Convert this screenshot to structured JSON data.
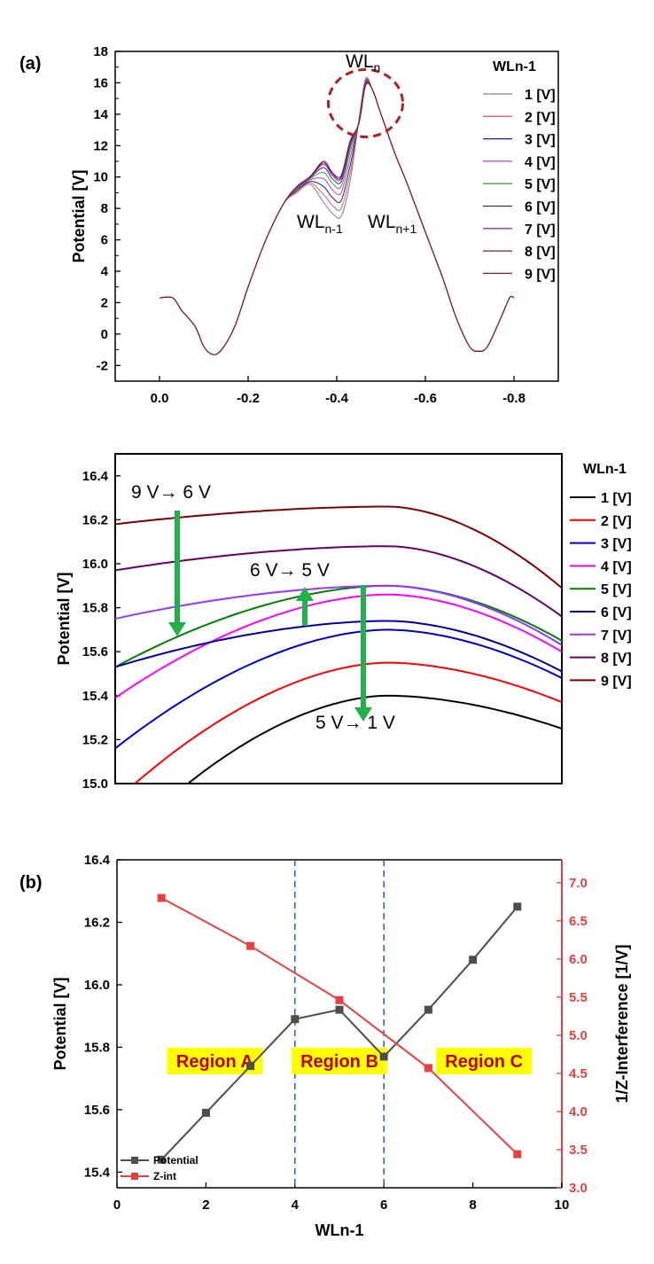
{
  "chart_data": [
    {
      "panel_label": "(a)",
      "type": "line",
      "ylabel": "Potential [V]",
      "xlim": [
        0.1,
        -0.9
      ],
      "ylim": [
        -3,
        18
      ],
      "xticks": [
        "0.0",
        "-0.2",
        "-0.4",
        "-0.6",
        "-0.8"
      ],
      "yticks": [
        "-2",
        "0",
        "2",
        "4",
        "6",
        "8",
        "10",
        "12",
        "14",
        "16",
        "18"
      ],
      "legend_title": "WLn-1",
      "legend_position": "right",
      "annotations": {
        "wl_n": "WLn",
        "wl_n_minus_1": "WLn-1",
        "wl_n_plus_1": "WLn+1"
      },
      "highlight": "dashed circle around peak",
      "series": [
        {
          "name": "1 [V]",
          "color": "#808080",
          "peak": 16.25,
          "wl_prev": 7.5
        },
        {
          "name": "2 [V]",
          "color": "#e06060",
          "peak": 16.2,
          "wl_prev": 8.0
        },
        {
          "name": "3 [V]",
          "color": "#202080",
          "peak": 16.1,
          "wl_prev": 8.5
        },
        {
          "name": "4 [V]",
          "color": "#c040c0",
          "peak": 16.05,
          "wl_prev": 9.0
        },
        {
          "name": "5 [V]",
          "color": "#40a040",
          "peak": 16.0,
          "wl_prev": 9.4
        },
        {
          "name": "6 [V]",
          "color": "#303070",
          "peak": 15.95,
          "wl_prev": 9.7
        },
        {
          "name": "7 [V]",
          "color": "#9030c0",
          "peak": 15.9,
          "wl_prev": 9.9
        },
        {
          "name": "8 [V]",
          "color": "#602070",
          "peak": 15.85,
          "wl_prev": 10.0
        },
        {
          "name": "9 [V]",
          "color": "#802020",
          "peak": 15.8,
          "wl_prev": 10.1
        }
      ]
    },
    {
      "type": "line",
      "ylabel": "Potential [V]",
      "ylim": [
        15.0,
        16.5
      ],
      "yticks": [
        "15.0",
        "15.2",
        "15.4",
        "15.6",
        "15.8",
        "16.0",
        "16.2",
        "16.4"
      ],
      "legend_title": "WLn-1",
      "legend_position": "right",
      "annotations": [
        "9 V→ 6 V",
        "6 V→ 5 V",
        "5 V→ 1 V"
      ],
      "series": [
        {
          "name": "1 [V]",
          "color": "#000000",
          "left": 14.7,
          "max": 15.4,
          "right": 15.25
        },
        {
          "name": "2 [V]",
          "color": "#ff0000",
          "left": 14.92,
          "max": 15.55,
          "right": 15.37
        },
        {
          "name": "3 [V]",
          "color": "#0000cc",
          "left": 15.16,
          "max": 15.7,
          "right": 15.48
        },
        {
          "name": "4 [V]",
          "color": "#ff00ff",
          "left": 15.39,
          "max": 15.86,
          "right": 15.6
        },
        {
          "name": "5 [V]",
          "color": "#008000",
          "left": 15.53,
          "max": 15.9,
          "right": 15.65
        },
        {
          "name": "6 [V]",
          "color": "#0000a0",
          "left": 15.53,
          "max": 15.74,
          "right": 15.51
        },
        {
          "name": "7 [V]",
          "color": "#9933ff",
          "left": 15.75,
          "max": 15.9,
          "right": 15.63
        },
        {
          "name": "8 [V]",
          "color": "#660066",
          "left": 15.97,
          "max": 16.08,
          "right": 15.76
        },
        {
          "name": "9 [V]",
          "color": "#800000",
          "left": 16.18,
          "max": 16.26,
          "right": 15.89
        }
      ]
    },
    {
      "panel_label": "(b)",
      "type": "line",
      "xlabel": "WLn-1",
      "ylabel": "Potential [V]",
      "ylabel_right": "1/Z-Interference [1/V]",
      "xlim": [
        0,
        10
      ],
      "ylim": [
        15.35,
        16.4
      ],
      "ylim_right": [
        3.0,
        7.3
      ],
      "xticks": [
        "0",
        "2",
        "4",
        "6",
        "8",
        "10"
      ],
      "yticks": [
        "15.4",
        "15.6",
        "15.8",
        "16.0",
        "16.2",
        "16.4"
      ],
      "yticks_right": [
        "3.0",
        "3.5",
        "4.0",
        "4.5",
        "5.0",
        "5.5",
        "6.0",
        "6.5",
        "7.0"
      ],
      "legend_position": "bottom-left",
      "regions": [
        "Region A",
        "Region B",
        "Region C"
      ],
      "region_boundaries": [
        4,
        6
      ],
      "series": [
        {
          "name": "Potential",
          "color": "#4d4d4d",
          "axis": "left",
          "x": [
            1,
            2,
            3,
            4,
            5,
            6,
            7,
            8,
            9
          ],
          "values": [
            15.44,
            15.59,
            15.74,
            15.89,
            15.92,
            15.77,
            15.92,
            16.08,
            16.25
          ]
        },
        {
          "name": "Z-int",
          "color": "#e84040",
          "axis": "right",
          "x": [
            1,
            3,
            5,
            7,
            9
          ],
          "values": [
            6.8,
            6.17,
            5.46,
            4.57,
            3.44
          ]
        }
      ]
    }
  ]
}
